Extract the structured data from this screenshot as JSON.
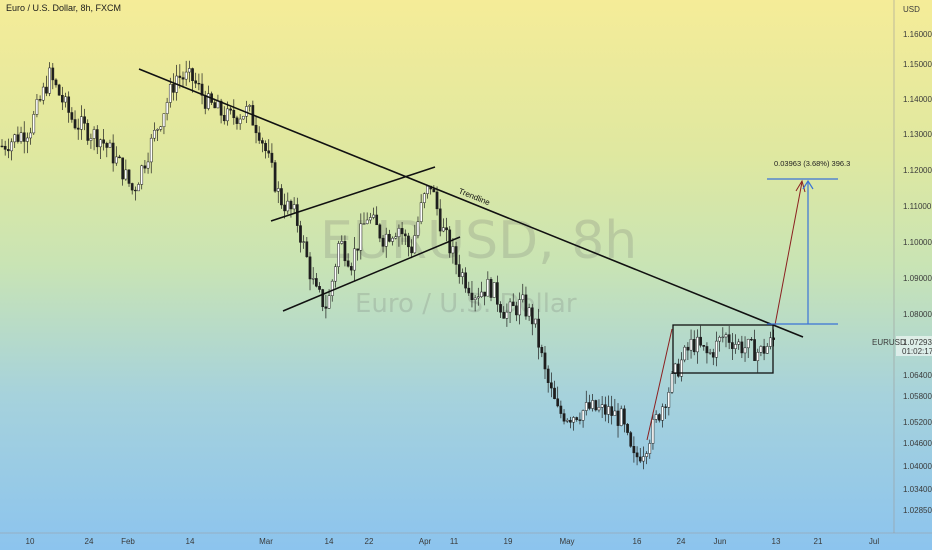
{
  "header": {
    "title": "Euro / U.S. Dollar, 8h, FXCM"
  },
  "watermark": {
    "symbol": "EURUSD, 8h",
    "name": "Euro / U.S. Dollar"
  },
  "colors": {
    "up": "#1e1e1e",
    "down": "#1e1e1e",
    "line": "#111111",
    "projection": "#8b2020",
    "measure": "#3a73d6",
    "label_bg": "#ffffff"
  },
  "chart_data": {
    "type": "candlestick",
    "symbol": "EURUSD",
    "ylabel": "USD",
    "ylim": [
      1.026,
      1.17
    ],
    "y_ticks": [
      "1.16000",
      "1.15000",
      "1.14000",
      "1.13000",
      "1.12000",
      "1.11000",
      "1.10000",
      "1.09000",
      "1.08000",
      "1.07293",
      "1.06400",
      "1.05800",
      "1.05200",
      "1.04600",
      "1.04000",
      "1.03400",
      "1.02850"
    ],
    "x_ticks": [
      "10",
      "24",
      "Feb",
      "14",
      "Mar",
      "14",
      "22",
      "Apr",
      "11",
      "19",
      "May",
      "16",
      "24",
      "Jun",
      "13",
      "21",
      "Jul"
    ],
    "current_price": {
      "label": "EURUSD",
      "value": "1.07293",
      "countdown": "01:02:17"
    },
    "price_path": [
      {
        "x": 0.0,
        "y": 1.128
      },
      {
        "x": 7.0,
        "y": 1.133
      },
      {
        "x": 12.0,
        "y": 1.148
      },
      {
        "x": 18.0,
        "y": 1.135
      },
      {
        "x": 25.0,
        "y": 1.13
      },
      {
        "x": 30.0,
        "y": 1.122
      },
      {
        "x": 33.0,
        "y": 1.115
      },
      {
        "x": 38.0,
        "y": 1.13
      },
      {
        "x": 44.0,
        "y": 1.148
      },
      {
        "x": 48.0,
        "y": 1.147
      },
      {
        "x": 52.0,
        "y": 1.14
      },
      {
        "x": 57.0,
        "y": 1.136
      },
      {
        "x": 62.0,
        "y": 1.138
      },
      {
        "x": 65.0,
        "y": 1.132
      },
      {
        "x": 70.0,
        "y": 1.113
      },
      {
        "x": 74.0,
        "y": 1.108
      },
      {
        "x": 79.0,
        "y": 1.086
      },
      {
        "x": 82.0,
        "y": 1.082
      },
      {
        "x": 85.0,
        "y": 1.101
      },
      {
        "x": 88.0,
        "y": 1.095
      },
      {
        "x": 92.0,
        "y": 1.108
      },
      {
        "x": 96.0,
        "y": 1.102
      },
      {
        "x": 100.0,
        "y": 1.105
      },
      {
        "x": 103.0,
        "y": 1.098
      },
      {
        "x": 106.0,
        "y": 1.112
      },
      {
        "x": 108.0,
        "y": 1.117
      },
      {
        "x": 111.0,
        "y": 1.104
      },
      {
        "x": 115.0,
        "y": 1.093
      },
      {
        "x": 119.0,
        "y": 1.086
      },
      {
        "x": 123.0,
        "y": 1.088
      },
      {
        "x": 127.0,
        "y": 1.08
      },
      {
        "x": 131.0,
        "y": 1.083
      },
      {
        "x": 134.0,
        "y": 1.078
      },
      {
        "x": 137.0,
        "y": 1.062
      },
      {
        "x": 140.0,
        "y": 1.052
      },
      {
        "x": 143.0,
        "y": 1.051
      },
      {
        "x": 148.0,
        "y": 1.053
      },
      {
        "x": 153.0,
        "y": 1.052
      },
      {
        "x": 156.0,
        "y": 1.05
      },
      {
        "x": 159.0,
        "y": 1.038
      },
      {
        "x": 162.0,
        "y": 1.042
      },
      {
        "x": 166.0,
        "y": 1.053
      },
      {
        "x": 170.0,
        "y": 1.064
      },
      {
        "x": 174.0,
        "y": 1.072
      },
      {
        "x": 178.0,
        "y": 1.068
      },
      {
        "x": 182.0,
        "y": 1.074
      },
      {
        "x": 186.0,
        "y": 1.071
      },
      {
        "x": 191.0,
        "y": 1.069
      },
      {
        "x": 195.0,
        "y": 1.073
      }
    ],
    "annotations": [
      {
        "type": "label",
        "text": "Trendline"
      },
      {
        "type": "measure",
        "text": "0.03963 (3.68%) 396.3"
      }
    ]
  }
}
